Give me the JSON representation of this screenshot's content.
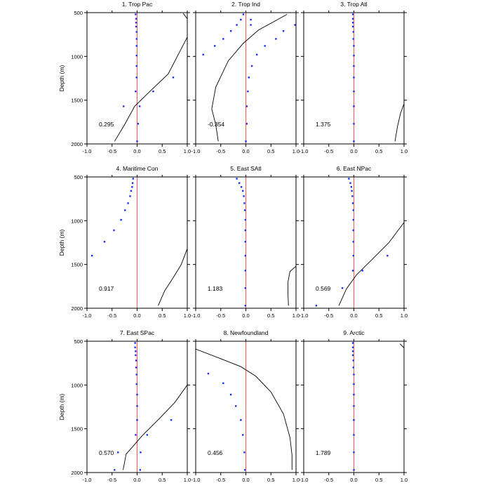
{
  "chart_data": [
    {
      "type": "line",
      "title": "1. Trop Pac",
      "ylabel": "Depth (m)",
      "xlim": [
        -1,
        1
      ],
      "ylim": [
        2000,
        500
      ],
      "xticks": [
        "-1.0",
        "-0.5",
        "0.0",
        "0.5",
        "1.0"
      ],
      "yticks": [
        "500",
        "1000",
        "1500",
        "2000"
      ],
      "annotation": "0.295",
      "zero_line": [
        {
          "x": 0,
          "y": 500
        },
        {
          "x": 0,
          "y": 2000
        }
      ],
      "curve": [
        {
          "x": 0.92,
          "y": 510
        },
        {
          "x": 1.0,
          "y": 570
        }
      ],
      "curve2": [
        {
          "x": 1.0,
          "y": 780
        },
        {
          "x": 0.62,
          "y": 1200
        },
        {
          "x": 0.2,
          "y": 1430
        },
        {
          "x": -0.05,
          "y": 1570
        },
        {
          "x": -0.25,
          "y": 1780
        },
        {
          "x": -0.45,
          "y": 1970
        }
      ],
      "points": [
        {
          "x": -0.03,
          "y": 520
        },
        {
          "x": -0.02,
          "y": 570
        },
        {
          "x": -0.02,
          "y": 615
        },
        {
          "x": -0.02,
          "y": 660
        },
        {
          "x": -0.01,
          "y": 720
        },
        {
          "x": -0.01,
          "y": 800
        },
        {
          "x": -0.01,
          "y": 880
        },
        {
          "x": -0.01,
          "y": 990
        },
        {
          "x": -0.01,
          "y": 1110
        },
        {
          "x": -0.01,
          "y": 1240
        },
        {
          "x": -0.03,
          "y": 1400
        },
        {
          "x": -0.27,
          "y": 1570
        },
        {
          "x": 0.05,
          "y": 1570
        },
        {
          "x": 0.32,
          "y": 1400
        },
        {
          "x": 0.72,
          "y": 1240
        },
        {
          "x": 0.02,
          "y": 1770
        },
        {
          "x": 0.0,
          "y": 1970
        }
      ]
    },
    {
      "type": "line",
      "title": "2. Trop Ind",
      "ylabel": "",
      "xlim": [
        -1,
        1
      ],
      "ylim": [
        2000,
        500
      ],
      "xticks": [
        "-1.0",
        "-0.5",
        "0.0",
        "0.5",
        "1.0"
      ],
      "yticks": [],
      "annotation": "-0.354",
      "zero_line": [
        {
          "x": 0,
          "y": 500
        },
        {
          "x": 0,
          "y": 2000
        }
      ],
      "curve": [
        {
          "x": 0.82,
          "y": 520
        },
        {
          "x": 0.25,
          "y": 700
        },
        {
          "x": -0.05,
          "y": 850
        },
        {
          "x": -0.35,
          "y": 1050
        },
        {
          "x": -0.6,
          "y": 1350
        },
        {
          "x": -0.68,
          "y": 1600
        },
        {
          "x": -0.6,
          "y": 1780
        },
        {
          "x": -0.55,
          "y": 1970
        }
      ],
      "curve2": [],
      "points": [
        {
          "x": -0.05,
          "y": 520
        },
        {
          "x": -0.1,
          "y": 580
        },
        {
          "x": -0.18,
          "y": 640
        },
        {
          "x": -0.3,
          "y": 710
        },
        {
          "x": -0.45,
          "y": 800
        },
        {
          "x": -0.62,
          "y": 880
        },
        {
          "x": -0.85,
          "y": 980
        },
        {
          "x": 0.1,
          "y": 580
        },
        {
          "x": 0.1,
          "y": 640
        },
        {
          "x": 0.6,
          "y": 800
        },
        {
          "x": 0.75,
          "y": 710
        },
        {
          "x": 0.98,
          "y": 640
        },
        {
          "x": 0.38,
          "y": 880
        },
        {
          "x": 0.22,
          "y": 980
        },
        {
          "x": 0.12,
          "y": 1110
        },
        {
          "x": 0.06,
          "y": 1240
        },
        {
          "x": 0.04,
          "y": 1400
        },
        {
          "x": 0.02,
          "y": 1570
        },
        {
          "x": 0.02,
          "y": 1770
        },
        {
          "x": 0.0,
          "y": 1970
        }
      ]
    },
    {
      "type": "line",
      "title": "3. Trop Atl",
      "ylabel": "",
      "xlim": [
        -1,
        1
      ],
      "ylim": [
        2000,
        500
      ],
      "xticks": [
        "-1.0",
        "-0.5",
        "0.0",
        "0.5",
        "1.0"
      ],
      "yticks": [],
      "annotation": "1.375",
      "zero_line": [
        {
          "x": 0,
          "y": 500
        },
        {
          "x": 0,
          "y": 2000
        }
      ],
      "curve": [
        {
          "x": 1.0,
          "y": 1540
        },
        {
          "x": 0.93,
          "y": 1650
        },
        {
          "x": 0.87,
          "y": 1800
        },
        {
          "x": 0.82,
          "y": 1970
        }
      ],
      "curve2": [],
      "points": [
        {
          "x": -0.02,
          "y": 520
        },
        {
          "x": -0.02,
          "y": 570
        },
        {
          "x": -0.02,
          "y": 615
        },
        {
          "x": -0.02,
          "y": 660
        },
        {
          "x": -0.01,
          "y": 720
        },
        {
          "x": -0.01,
          "y": 800
        },
        {
          "x": 0.0,
          "y": 880
        },
        {
          "x": 0.0,
          "y": 990
        },
        {
          "x": 0.0,
          "y": 1110
        },
        {
          "x": 0.0,
          "y": 1240
        },
        {
          "x": 0.0,
          "y": 1400
        },
        {
          "x": 0.0,
          "y": 1570
        },
        {
          "x": 0.0,
          "y": 1770
        },
        {
          "x": 0.0,
          "y": 1970
        }
      ]
    },
    {
      "type": "line",
      "title": "4. Maritime Con",
      "ylabel": "Depth (m)",
      "xlim": [
        -1,
        1
      ],
      "ylim": [
        2000,
        500
      ],
      "xticks": [
        "-1.0",
        "-0.5",
        "0.0",
        "0.5",
        "1.0"
      ],
      "yticks": [
        "500",
        "1000",
        "1500",
        "2000"
      ],
      "annotation": "0.917",
      "zero_line": [
        {
          "x": 0,
          "y": 500
        },
        {
          "x": 0,
          "y": 2000
        }
      ],
      "curve": [
        {
          "x": 1.0,
          "y": 1320
        },
        {
          "x": 0.88,
          "y": 1500
        },
        {
          "x": 0.72,
          "y": 1650
        },
        {
          "x": 0.55,
          "y": 1800
        },
        {
          "x": 0.42,
          "y": 1970
        }
      ],
      "curve2": [],
      "points": [
        {
          "x": -0.08,
          "y": 520
        },
        {
          "x": -0.09,
          "y": 570
        },
        {
          "x": -0.1,
          "y": 615
        },
        {
          "x": -0.12,
          "y": 660
        },
        {
          "x": -0.14,
          "y": 720
        },
        {
          "x": -0.18,
          "y": 800
        },
        {
          "x": -0.24,
          "y": 880
        },
        {
          "x": -0.32,
          "y": 990
        },
        {
          "x": -0.46,
          "y": 1110
        },
        {
          "x": -0.65,
          "y": 1240
        },
        {
          "x": -0.9,
          "y": 1400
        }
      ]
    },
    {
      "type": "line",
      "title": "5. East SAtl",
      "ylabel": "",
      "xlim": [
        -1,
        1
      ],
      "ylim": [
        2000,
        500
      ],
      "xticks": [
        "-1.0",
        "-0.5",
        "0.0",
        "0.5",
        "1.0"
      ],
      "yticks": [],
      "annotation": "1.183",
      "zero_line": [
        {
          "x": 0,
          "y": 500
        },
        {
          "x": 0,
          "y": 2000
        }
      ],
      "curve": [
        {
          "x": 1.0,
          "y": 1520
        },
        {
          "x": 0.88,
          "y": 1580
        },
        {
          "x": 0.84,
          "y": 1700
        },
        {
          "x": 0.84,
          "y": 1850
        },
        {
          "x": 0.85,
          "y": 1970
        }
      ],
      "curve2": [],
      "points": [
        {
          "x": -0.18,
          "y": 520
        },
        {
          "x": -0.13,
          "y": 570
        },
        {
          "x": -0.09,
          "y": 615
        },
        {
          "x": -0.06,
          "y": 660
        },
        {
          "x": -0.04,
          "y": 720
        },
        {
          "x": -0.03,
          "y": 800
        },
        {
          "x": -0.02,
          "y": 880
        },
        {
          "x": -0.01,
          "y": 990
        },
        {
          "x": -0.01,
          "y": 1110
        },
        {
          "x": -0.01,
          "y": 1240
        },
        {
          "x": -0.01,
          "y": 1400
        },
        {
          "x": -0.01,
          "y": 1570
        },
        {
          "x": -0.01,
          "y": 1770
        },
        {
          "x": -0.01,
          "y": 1970
        }
      ]
    },
    {
      "type": "line",
      "title": "6. East NPac",
      "ylabel": "",
      "xlim": [
        -1,
        1
      ],
      "ylim": [
        2000,
        500
      ],
      "xticks": [
        "-1.0",
        "-0.5",
        "0.0",
        "0.5",
        "1.0"
      ],
      "yticks": [],
      "annotation": "0.569",
      "zero_line": [
        {
          "x": 0,
          "y": 500
        },
        {
          "x": 0,
          "y": 2000
        }
      ],
      "curve": [
        {
          "x": 1.0,
          "y": 1020
        },
        {
          "x": 0.7,
          "y": 1250
        },
        {
          "x": 0.35,
          "y": 1450
        },
        {
          "x": 0.05,
          "y": 1620
        },
        {
          "x": -0.15,
          "y": 1780
        },
        {
          "x": -0.3,
          "y": 1970
        }
      ],
      "curve2": [],
      "points": [
        {
          "x": -0.1,
          "y": 520
        },
        {
          "x": -0.07,
          "y": 570
        },
        {
          "x": -0.05,
          "y": 615
        },
        {
          "x": -0.04,
          "y": 660
        },
        {
          "x": -0.03,
          "y": 720
        },
        {
          "x": -0.02,
          "y": 800
        },
        {
          "x": -0.01,
          "y": 880
        },
        {
          "x": -0.01,
          "y": 990
        },
        {
          "x": -0.01,
          "y": 1110
        },
        {
          "x": -0.01,
          "y": 1240
        },
        {
          "x": -0.01,
          "y": 1400
        },
        {
          "x": -0.02,
          "y": 1570
        },
        {
          "x": 0.17,
          "y": 1570
        },
        {
          "x": 0.67,
          "y": 1400
        },
        {
          "x": -0.23,
          "y": 1770
        },
        {
          "x": -0.75,
          "y": 1970
        }
      ]
    },
    {
      "type": "line",
      "title": "7. East SPac",
      "ylabel": "Depth (m)",
      "xlim": [
        -1,
        1
      ],
      "ylim": [
        2000,
        500
      ],
      "xticks": [
        "-1.0",
        "-0.5",
        "0.0",
        "0.5",
        "1.0"
      ],
      "yticks": [
        "500",
        "1000",
        "1500",
        "2000"
      ],
      "annotation": "0.570",
      "zero_line": [
        {
          "x": 0,
          "y": 500
        },
        {
          "x": 0,
          "y": 2000
        }
      ],
      "curve": [
        {
          "x": 1.0,
          "y": 1000
        },
        {
          "x": 0.75,
          "y": 1200
        },
        {
          "x": 0.45,
          "y": 1380
        },
        {
          "x": 0.1,
          "y": 1580
        },
        {
          "x": -0.22,
          "y": 1790
        },
        {
          "x": -0.28,
          "y": 1970
        }
      ],
      "curve2": [],
      "points": [
        {
          "x": -0.04,
          "y": 520
        },
        {
          "x": -0.04,
          "y": 570
        },
        {
          "x": -0.03,
          "y": 615
        },
        {
          "x": -0.03,
          "y": 660
        },
        {
          "x": -0.02,
          "y": 720
        },
        {
          "x": -0.02,
          "y": 800
        },
        {
          "x": -0.01,
          "y": 880
        },
        {
          "x": -0.01,
          "y": 990
        },
        {
          "x": 0.0,
          "y": 1110
        },
        {
          "x": 0.0,
          "y": 1240
        },
        {
          "x": 0.0,
          "y": 1400
        },
        {
          "x": -0.03,
          "y": 1570
        },
        {
          "x": 0.2,
          "y": 1570
        },
        {
          "x": 0.68,
          "y": 1400
        },
        {
          "x": -0.38,
          "y": 1770
        },
        {
          "x": 0.07,
          "y": 1770
        },
        {
          "x": -0.45,
          "y": 1970
        },
        {
          "x": 0.06,
          "y": 1970
        }
      ]
    },
    {
      "type": "line",
      "title": "8. Newfoundland",
      "ylabel": "",
      "xlim": [
        -1,
        1
      ],
      "ylim": [
        2000,
        500
      ],
      "xticks": [
        "-1.0",
        "-0.5",
        "0.0",
        "0.5",
        "1.0"
      ],
      "yticks": [],
      "annotation": "0.456",
      "zero_line": [
        {
          "x": 0,
          "y": 500
        },
        {
          "x": 0,
          "y": 2000
        }
      ],
      "curve": [
        {
          "x": -1.0,
          "y": 590
        },
        {
          "x": -0.5,
          "y": 700
        },
        {
          "x": -0.1,
          "y": 790
        },
        {
          "x": 0.2,
          "y": 900
        },
        {
          "x": 0.5,
          "y": 1080
        },
        {
          "x": 0.75,
          "y": 1330
        },
        {
          "x": 0.88,
          "y": 1600
        },
        {
          "x": 0.92,
          "y": 1800
        },
        {
          "x": 0.92,
          "y": 1970
        }
      ],
      "curve2": [],
      "points": [
        {
          "x": -0.75,
          "y": 870
        },
        {
          "x": -0.45,
          "y": 980
        },
        {
          "x": -0.3,
          "y": 1110
        },
        {
          "x": -0.2,
          "y": 1240
        },
        {
          "x": -0.1,
          "y": 1400
        },
        {
          "x": -0.06,
          "y": 1570
        },
        {
          "x": -0.03,
          "y": 1770
        },
        {
          "x": -0.02,
          "y": 1970
        }
      ]
    },
    {
      "type": "line",
      "title": "9. Arctic",
      "ylabel": "",
      "xlim": [
        -1,
        1
      ],
      "ylim": [
        2000,
        500
      ],
      "xticks": [
        "-1.0",
        "-0.5",
        "0.0",
        "0.5",
        "1.0"
      ],
      "yticks": [],
      "annotation": "1.789",
      "zero_line": [
        {
          "x": 0,
          "y": 500
        },
        {
          "x": 0,
          "y": 2000
        }
      ],
      "curve": [
        {
          "x": 0.92,
          "y": 530
        },
        {
          "x": 1.0,
          "y": 575
        }
      ],
      "curve2": [],
      "points": [
        {
          "x": -0.02,
          "y": 520
        },
        {
          "x": -0.02,
          "y": 570
        },
        {
          "x": -0.02,
          "y": 615
        },
        {
          "x": -0.02,
          "y": 660
        },
        {
          "x": -0.01,
          "y": 720
        },
        {
          "x": -0.01,
          "y": 800
        },
        {
          "x": 0.0,
          "y": 880
        },
        {
          "x": 0.0,
          "y": 990
        },
        {
          "x": 0.0,
          "y": 1110
        },
        {
          "x": 0.0,
          "y": 1240
        },
        {
          "x": 0.0,
          "y": 1400
        },
        {
          "x": 0.0,
          "y": 1570
        },
        {
          "x": 0.0,
          "y": 1770
        },
        {
          "x": 0.0,
          "y": 1970
        }
      ]
    }
  ],
  "colors": {
    "zero_line": "#ff5a5a",
    "points": "#1c2cff",
    "curve": "#000000",
    "frame": "#000000"
  }
}
